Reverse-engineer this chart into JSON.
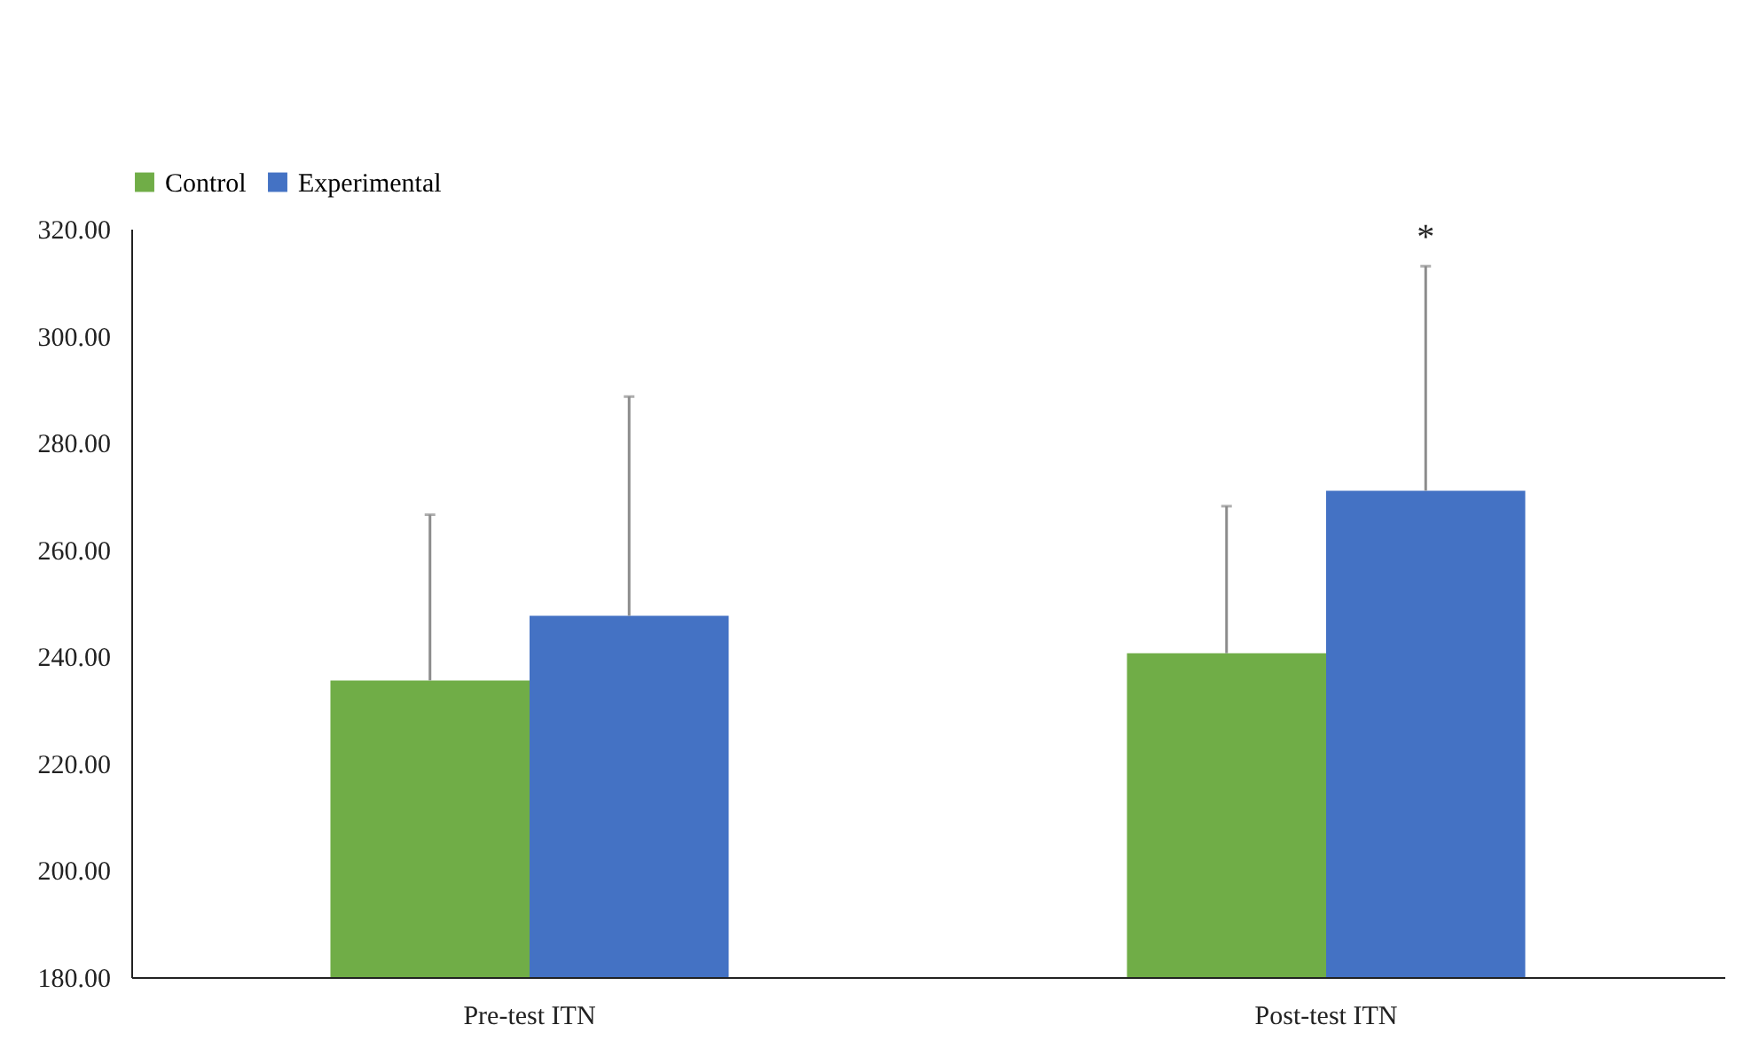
{
  "chart_data": {
    "type": "bar",
    "categories": [
      "Pre-test ITN",
      "Post-test ITN"
    ],
    "series": [
      {
        "name": "Control",
        "color": "#70ad47",
        "values": [
          235.5,
          240.6
        ],
        "errors": [
          31,
          27.5
        ]
      },
      {
        "name": "Experimental",
        "color": "#4472c4",
        "values": [
          247.6,
          271.0
        ],
        "errors": [
          41,
          42
        ]
      }
    ],
    "ylim": [
      180,
      320
    ],
    "yticks": [
      {
        "value": 180,
        "label": "180.00"
      },
      {
        "value": 200,
        "label": "200.00"
      },
      {
        "value": 220,
        "label": "220.00"
      },
      {
        "value": 240,
        "label": "240.00"
      },
      {
        "value": 260,
        "label": "260.00"
      },
      {
        "value": 280,
        "label": "280.00"
      },
      {
        "value": 300,
        "label": "300.00"
      },
      {
        "value": 320,
        "label": "320.00"
      }
    ],
    "annotations": [
      "*"
    ],
    "legend": "top",
    "grid": false
  }
}
